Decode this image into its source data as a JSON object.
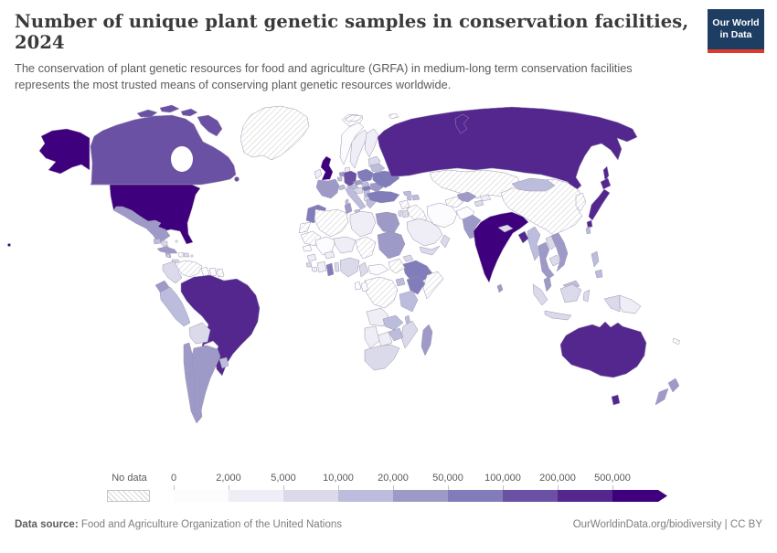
{
  "header": {
    "title": "Number of unique plant genetic samples in conservation facilities, 2024",
    "subtitle": "The conservation of plant genetic resources for food and agriculture (GRFA) in medium-long term conservation facilities represents the most trusted means of conserving plant genetic resources worldwide.",
    "logo": {
      "line1": "Our World",
      "line2": "in Data",
      "bg": "#1d3d63",
      "accent": "#dc3b2b"
    }
  },
  "legend": {
    "no_data_label": "No data"
  },
  "footer": {
    "source_label": "Data source:",
    "source_text": " Food and Agriculture Organization of the United Nations",
    "right_text": "OurWorldinData.org/biodiversity | CC BY"
  },
  "chart_data": {
    "type": "choropleth_map",
    "title": "Number of unique plant genetic samples in conservation facilities, 2024",
    "year": "2024",
    "legend_ticks": [
      "0",
      "2,000",
      "5,000",
      "10,000",
      "20,000",
      "50,000",
      "100,000",
      "200,000",
      "500,000"
    ],
    "bins": [
      {
        "label": "0 – 2,000",
        "color": "#fcfbfd"
      },
      {
        "label": "2,000 – 5,000",
        "color": "#efedf5"
      },
      {
        "label": "5,000 – 10,000",
        "color": "#dadaeb"
      },
      {
        "label": "10,000 – 20,000",
        "color": "#bcbddc"
      },
      {
        "label": "20,000 – 50,000",
        "color": "#9e9ac8"
      },
      {
        "label": "50,000 – 100,000",
        "color": "#807dba"
      },
      {
        "label": "100,000 – 200,000",
        "color": "#6a51a3"
      },
      {
        "label": "200,000 – 500,000",
        "color": "#54278f"
      },
      {
        "label": "500,000+",
        "color": "#3f007d"
      }
    ],
    "no_data": {
      "label": "No data",
      "pattern": "diagonal-hatch",
      "line_color": "#d4d4d4"
    },
    "countries": {
      "united-states": 8,
      "canada": 6,
      "greenland": "nd",
      "iceland": "nd",
      "mexico": 4,
      "cuba": 4,
      "haiti": "nd",
      "dominican-republic": 2,
      "jamaica": 2,
      "bahamas": 1,
      "puerto-rico": 1,
      "trinidad-and-tobago": 3,
      "guatemala": 3,
      "honduras": 2,
      "nicaragua": 2,
      "costa-rica": 3,
      "panama": 2,
      "colombia": 2,
      "venezuela": "nd",
      "guyana": 0,
      "suriname": 0,
      "french-guiana": "nd",
      "ecuador": 4,
      "peru": 3,
      "brazil": 7,
      "bolivia": 2,
      "paraguay": 0,
      "chile": 4,
      "argentina": 4,
      "uruguay": 3,
      "united-kingdom": 8,
      "ireland": 1,
      "norway": 0,
      "sweden": 1,
      "finland": 1,
      "denmark": 1,
      "baltic-states": 2,
      "france": 4,
      "netherlands": 4,
      "belgium": 3,
      "germany": 6,
      "switzerland": 3,
      "austria": 3,
      "czechia": 4,
      "poland": 5,
      "slovakia": 3,
      "hungary": 5,
      "croatia": 2,
      "serbia": 3,
      "albania": 2,
      "greece": 3,
      "italy": 3,
      "romania": 4,
      "bulgaria": 5,
      "moldova": 2,
      "ukraine": 5,
      "belarus": 3,
      "russia": 7,
      "svalbard": "nd",
      "franz-josef-land": "nd",
      "kazakhstan": "nd",
      "uzbekistan": 4,
      "turkmenistan": "nd",
      "kyrgyzstan": 1,
      "tajikistan": 2,
      "georgia": 3,
      "armenia": 3,
      "azerbaijan": 3,
      "turkey": 5,
      "syria": "nd",
      "iraq": "nd",
      "israel": 2,
      "jordan": 2,
      "saudi-arabia": 1,
      "yemen": 2,
      "oman": 2,
      "iran": 0,
      "afghanistan": 0,
      "pakistan": 4,
      "india": 8,
      "sri-lanka": 4,
      "nepal": 2,
      "bangladesh": 7,
      "myanmar": 3,
      "thailand": 4,
      "laos": 2,
      "cambodia": 2,
      "vietnam": 4,
      "malaysia": 4,
      "malaysia-borneo": 3,
      "indonesia": 2,
      "papua-new-guinea": 1,
      "philippines": 3,
      "taiwan": 3,
      "china": "nd",
      "korea": "nd",
      "mongolia": 3,
      "japan": 7,
      "australia": 7,
      "new-zealand": 4,
      "new-caledonia": "nd",
      "morocco": 5,
      "western-sahara": "nd",
      "mauritania": "nd",
      "algeria": "nd",
      "tunisia": 4,
      "libya": 1,
      "egypt": 4,
      "mali": 0,
      "niger": 1,
      "chad": "nd",
      "sudan": 4,
      "eritrea": 2,
      "senegal": 0,
      "guinea": 1,
      "sierra-leone": 2,
      "liberia": 1,
      "cote-divoire": 1,
      "burkina-faso": 1,
      "ghana": 5,
      "benin": 2,
      "nigeria": 2,
      "cameroon": 2,
      "central-african-republic": 0,
      "south-sudan": "nd",
      "ethiopia": 5,
      "somalia": "nd",
      "uganda": 3,
      "kenya": 5,
      "tanzania": 3,
      "dr-congo": "nd",
      "congo": 0,
      "gabon": 0,
      "angola": 1,
      "zambia": 3,
      "malawi": 3,
      "mozambique": 2,
      "zimbabwe": 3,
      "botswana": 1,
      "namibia": 1,
      "south-africa": 2,
      "madagascar": 4
    }
  }
}
